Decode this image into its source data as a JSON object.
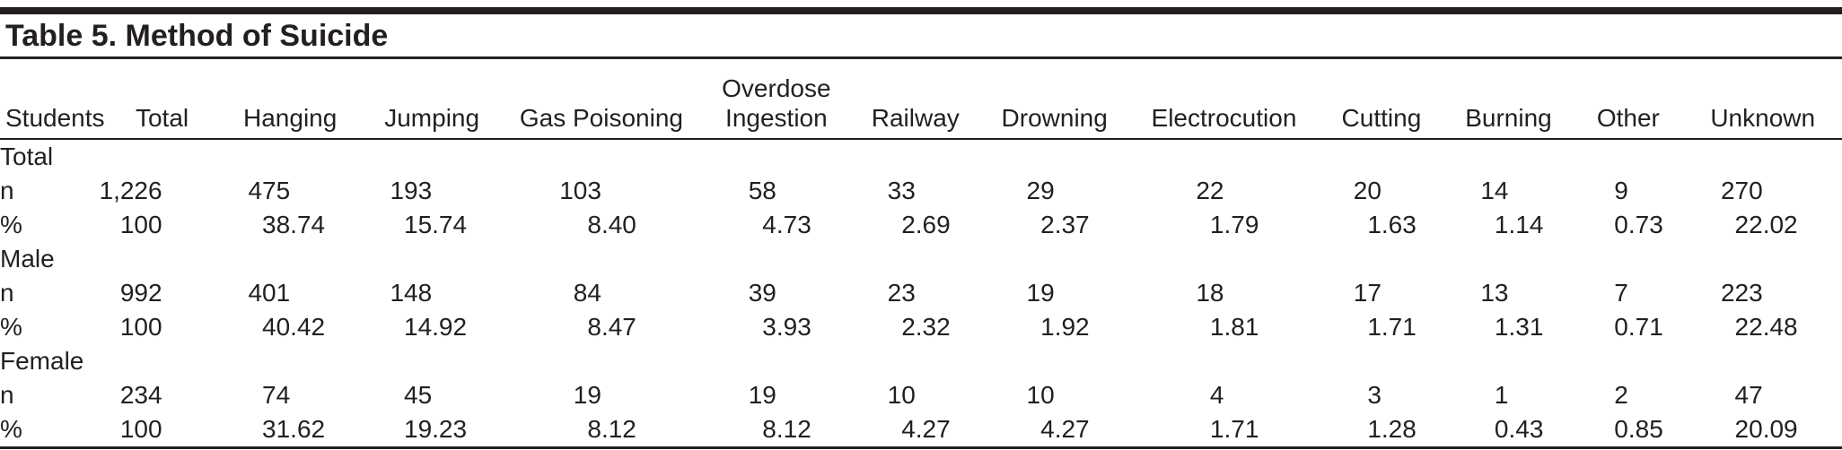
{
  "table": {
    "title": "Table 5. Method of Suicide",
    "columns": [
      "Students",
      "Total",
      "Hanging",
      "Jumping",
      "Gas Poisoning",
      "Overdose Ingestion",
      "Railway",
      "Drowning",
      "Electrocution",
      "Cutting",
      "Burning",
      "Other",
      "Unknown"
    ],
    "groups": [
      {
        "label": "Total",
        "rows": [
          {
            "label": "n",
            "values": [
              "1,226",
              "475",
              "193",
              "103",
              "58",
              "33",
              "29",
              "22",
              "20",
              "14",
              "9",
              "270"
            ]
          },
          {
            "label": "%",
            "values": [
              "100",
              "38.74",
              "15.74",
              "8.40",
              "4.73",
              "2.69",
              "2.37",
              "1.79",
              "1.63",
              "1.14",
              "0.73",
              "22.02"
            ]
          }
        ]
      },
      {
        "label": "Male",
        "rows": [
          {
            "label": "n",
            "values": [
              "992",
              "401",
              "148",
              "84",
              "39",
              "23",
              "19",
              "18",
              "17",
              "13",
              "7",
              "223"
            ]
          },
          {
            "label": "%",
            "values": [
              "100",
              "40.42",
              "14.92",
              "8.47",
              "3.93",
              "2.32",
              "1.92",
              "1.81",
              "1.71",
              "1.31",
              "0.71",
              "22.48"
            ]
          }
        ]
      },
      {
        "label": "Female",
        "rows": [
          {
            "label": "n",
            "values": [
              "234",
              "74",
              "45",
              "19",
              "19",
              "10",
              "10",
              "4",
              "3",
              "1",
              "2",
              "47"
            ]
          },
          {
            "label": "%",
            "values": [
              "100",
              "31.62",
              "19.23",
              "8.12",
              "8.12",
              "4.27",
              "4.27",
              "1.71",
              "1.28",
              "0.43",
              "0.85",
              "20.09"
            ]
          }
        ]
      }
    ],
    "colors": {
      "text": "#231f20",
      "rule": "#231f20",
      "background": "#ffffff"
    }
  },
  "chart_data": {
    "type": "table",
    "title": "Table 5. Method of Suicide",
    "columns": [
      "Students",
      "Total",
      "Hanging",
      "Jumping",
      "Gas Poisoning",
      "Overdose Ingestion",
      "Railway",
      "Drowning",
      "Electrocution",
      "Cutting",
      "Burning",
      "Other",
      "Unknown"
    ],
    "rows": [
      [
        "Total",
        "",
        "",
        "",
        "",
        "",
        "",
        "",
        "",
        "",
        "",
        "",
        ""
      ],
      [
        "n",
        "1,226",
        "475",
        "193",
        "103",
        "58",
        "33",
        "29",
        "22",
        "20",
        "14",
        "9",
        "270"
      ],
      [
        "%",
        "100",
        "38.74",
        "15.74",
        "8.40",
        "4.73",
        "2.69",
        "2.37",
        "1.79",
        "1.63",
        "1.14",
        "0.73",
        "22.02"
      ],
      [
        "Male",
        "",
        "",
        "",
        "",
        "",
        "",
        "",
        "",
        "",
        "",
        "",
        ""
      ],
      [
        "n",
        "992",
        "401",
        "148",
        "84",
        "39",
        "23",
        "19",
        "18",
        "17",
        "13",
        "7",
        "223"
      ],
      [
        "%",
        "100",
        "40.42",
        "14.92",
        "8.47",
        "3.93",
        "2.32",
        "1.92",
        "1.81",
        "1.71",
        "1.31",
        "0.71",
        "22.48"
      ],
      [
        "Female",
        "",
        "",
        "",
        "",
        "",
        "",
        "",
        "",
        "",
        "",
        "",
        ""
      ],
      [
        "n",
        "234",
        "74",
        "45",
        "19",
        "19",
        "10",
        "10",
        "4",
        "3",
        "1",
        "2",
        "47"
      ],
      [
        "%",
        "100",
        "31.62",
        "19.23",
        "8.12",
        "8.12",
        "4.27",
        "4.27",
        "1.71",
        "1.28",
        "0.43",
        "0.85",
        "20.09"
      ]
    ]
  }
}
